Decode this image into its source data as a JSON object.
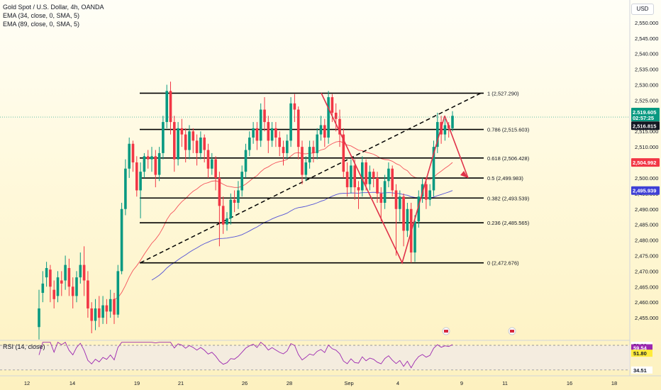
{
  "header": {
    "title": "Gold Spot / U.S. Dollar, 4h, OANDA",
    "ema1": "EMA (34, close, 0, SMA, 5)",
    "ema2": "EMA (89, close, 0, SMA, 5)",
    "currency": "USD"
  },
  "rsi_title": "RSI (14, close)",
  "colors": {
    "up": "#089981",
    "down": "#f23645",
    "ema34": "#f23645",
    "ema89": "#3f3fd6",
    "annotation": "#e0334a",
    "rsi": "#9c27b0",
    "lines": "#000000"
  },
  "chart_data": {
    "type": "candlestick",
    "instrument": "Gold Spot / U.S. Dollar",
    "timeframe": "4h",
    "ylim": [
      2450,
      2555
    ],
    "y_ticks": [
      2455,
      2460,
      2465,
      2470,
      2475,
      2480,
      2485,
      2490,
      2495,
      2500,
      2505,
      2510,
      2515,
      2520,
      2525,
      2530,
      2535,
      2540,
      2545,
      2550
    ],
    "x_ticks": [
      "12",
      "14",
      "19",
      "21",
      "26",
      "28",
      "Sep",
      "4",
      "9",
      "11",
      "16",
      "18"
    ],
    "candles": [
      [
        2452.0,
        2458.0,
        2448.0,
        2464.0
      ],
      [
        2463.0,
        2466.0,
        2460.0,
        2470.0
      ],
      [
        2468.0,
        2471.0,
        2465.0,
        2473.0
      ],
      [
        2470.5,
        2465.0,
        2460.0,
        2472.0
      ],
      [
        2464.0,
        2461.0,
        2458.0,
        2467.0
      ],
      [
        2462.0,
        2468.0,
        2460.0,
        2470.0
      ],
      [
        2467.0,
        2466.0,
        2462.0,
        2470.0
      ],
      [
        2467.0,
        2472.0,
        2464.0,
        2475.0
      ],
      [
        2471.0,
        2465.0,
        2462.0,
        2474.0
      ],
      [
        2465.0,
        2462.0,
        2458.0,
        2468.0
      ],
      [
        2462.0,
        2468.0,
        2460.0,
        2470.0
      ],
      [
        2468.0,
        2472.0,
        2466.0,
        2476.0
      ],
      [
        2472.0,
        2467.0,
        2462.0,
        2478.0
      ],
      [
        2467.0,
        2458.0,
        2455.0,
        2470.0
      ],
      [
        2458.0,
        2454.0,
        2450.0,
        2460.0
      ],
      [
        2454.0,
        2458.0,
        2451.0,
        2461.0
      ],
      [
        2458.0,
        2455.0,
        2452.0,
        2462.0
      ],
      [
        2455.0,
        2459.0,
        2453.0,
        2462.0
      ],
      [
        2459.0,
        2457.0,
        2453.0,
        2461.0
      ],
      [
        2457.0,
        2461.0,
        2455.0,
        2464.0
      ],
      [
        2461.0,
        2456.0,
        2453.0,
        2463.0
      ],
      [
        2456.0,
        2470.0,
        2455.0,
        2472.0
      ],
      [
        2470.0,
        2490.0,
        2469.0,
        2492.0
      ],
      [
        2490.0,
        2503.0,
        2488.0,
        2506.0
      ],
      [
        2503.0,
        2511.0,
        2500.0,
        2513.0
      ],
      [
        2511.0,
        2505.0,
        2502.0,
        2512.0
      ],
      [
        2505.0,
        2496.0,
        2494.0,
        2507.0
      ],
      [
        2496.0,
        2502.0,
        2487.0,
        2505.0
      ],
      [
        2502.0,
        2507.0,
        2500.0,
        2508.0
      ],
      [
        2507.0,
        2506.0,
        2503.0,
        2509.0
      ],
      [
        2506.0,
        2507.0,
        2502.0,
        2510.0
      ],
      [
        2507.0,
        2501.0,
        2497.0,
        2509.0
      ],
      [
        2501.0,
        2508.0,
        2499.0,
        2510.0
      ],
      [
        2508.0,
        2518.0,
        2506.0,
        2520.0
      ],
      [
        2518.0,
        2528.0,
        2516.0,
        2530.0
      ],
      [
        2528.0,
        2518.0,
        2514.0,
        2531.0
      ],
      [
        2518.0,
        2506.0,
        2502.0,
        2520.0
      ],
      [
        2506.0,
        2516.0,
        2504.0,
        2518.0
      ],
      [
        2516.0,
        2514.0,
        2510.0,
        2519.0
      ],
      [
        2514.0,
        2509.0,
        2505.0,
        2516.0
      ],
      [
        2509.0,
        2515.0,
        2506.0,
        2517.0
      ],
      [
        2515.0,
        2512.0,
        2508.0,
        2516.0
      ],
      [
        2512.0,
        2508.0,
        2504.0,
        2514.0
      ],
      [
        2508.0,
        2513.0,
        2506.0,
        2515.0
      ],
      [
        2513.0,
        2509.0,
        2505.0,
        2514.0
      ],
      [
        2509.0,
        2503.0,
        2500.0,
        2511.0
      ],
      [
        2503.0,
        2506.0,
        2501.0,
        2508.0
      ],
      [
        2506.0,
        2500.0,
        2496.0,
        2507.0
      ],
      [
        2500.0,
        2491.0,
        2478.0,
        2502.0
      ],
      [
        2491.0,
        2485.0,
        2482.0,
        2494.0
      ],
      [
        2485.0,
        2487.0,
        2483.0,
        2489.0
      ],
      [
        2487.0,
        2493.0,
        2485.0,
        2495.0
      ],
      [
        2493.0,
        2492.0,
        2489.0,
        2496.0
      ],
      [
        2492.0,
        2496.0,
        2490.0,
        2499.0
      ],
      [
        2496.0,
        2502.0,
        2494.0,
        2504.0
      ],
      [
        2502.0,
        2509.0,
        2500.0,
        2511.0
      ],
      [
        2509.0,
        2513.0,
        2507.0,
        2515.0
      ],
      [
        2513.0,
        2516.0,
        2511.0,
        2518.0
      ],
      [
        2516.0,
        2512.0,
        2509.0,
        2518.0
      ],
      [
        2512.0,
        2522.0,
        2510.0,
        2524.0
      ],
      [
        2522.0,
        2518.0,
        2515.0,
        2526.0
      ],
      [
        2518.0,
        2512.0,
        2508.0,
        2520.0
      ],
      [
        2512.0,
        2516.0,
        2510.0,
        2518.0
      ],
      [
        2516.0,
        2513.0,
        2510.0,
        2518.0
      ],
      [
        2513.0,
        2510.0,
        2507.0,
        2515.0
      ],
      [
        2510.0,
        2508.0,
        2504.0,
        2512.0
      ],
      [
        2508.0,
        2512.0,
        2506.0,
        2514.0
      ],
      [
        2512.0,
        2524.0,
        2510.0,
        2526.0
      ],
      [
        2524.0,
        2522.0,
        2518.0,
        2527.0
      ],
      [
        2522.0,
        2510.0,
        2506.0,
        2523.0
      ],
      [
        2510.0,
        2501.0,
        2498.0,
        2512.0
      ],
      [
        2501.0,
        2505.0,
        2499.0,
        2507.0
      ],
      [
        2505.0,
        2510.0,
        2503.0,
        2512.0
      ],
      [
        2510.0,
        2508.0,
        2505.0,
        2512.0
      ],
      [
        2508.0,
        2514.0,
        2506.0,
        2516.0
      ],
      [
        2514.0,
        2517.0,
        2512.0,
        2520.0
      ],
      [
        2517.0,
        2513.0,
        2510.0,
        2519.0
      ],
      [
        2513.0,
        2526.0,
        2511.0,
        2528.0
      ],
      [
        2526.0,
        2521.0,
        2518.0,
        2527.0
      ],
      [
        2521.0,
        2519.0,
        2515.0,
        2524.0
      ],
      [
        2519.0,
        2514.0,
        2510.0,
        2522.0
      ],
      [
        2514.0,
        2502.0,
        2500.0,
        2516.0
      ],
      [
        2502.0,
        2497.0,
        2494.0,
        2505.0
      ],
      [
        2497.0,
        2504.0,
        2495.0,
        2506.0
      ],
      [
        2504.0,
        2497.0,
        2493.0,
        2506.0
      ],
      [
        2497.0,
        2496.0,
        2490.0,
        2499.0
      ],
      [
        2496.0,
        2505.0,
        2494.0,
        2507.0
      ],
      [
        2505.0,
        2498.0,
        2496.0,
        2506.0
      ],
      [
        2498.0,
        2502.0,
        2496.0,
        2504.0
      ],
      [
        2502.0,
        2500.0,
        2497.0,
        2503.0
      ],
      [
        2500.0,
        2495.0,
        2492.0,
        2502.0
      ],
      [
        2495.0,
        2492.0,
        2486.0,
        2497.0
      ],
      [
        2492.0,
        2499.0,
        2490.0,
        2501.0
      ],
      [
        2499.0,
        2503.0,
        2497.0,
        2505.0
      ],
      [
        2503.0,
        2496.0,
        2494.0,
        2504.0
      ],
      [
        2496.0,
        2490.0,
        2475.0,
        2498.0
      ],
      [
        2490.0,
        2494.0,
        2486.0,
        2496.0
      ],
      [
        2494.0,
        2483.0,
        2478.0,
        2495.0
      ],
      [
        2483.0,
        2490.0,
        2481.0,
        2492.0
      ],
      [
        2490.0,
        2476.0,
        2472.7,
        2492.0
      ],
      [
        2476.0,
        2486.0,
        2473.0,
        2488.0
      ],
      [
        2486.0,
        2494.0,
        2484.0,
        2496.0
      ],
      [
        2494.0,
        2498.0,
        2492.0,
        2500.0
      ],
      [
        2498.0,
        2493.0,
        2490.0,
        2500.0
      ],
      [
        2493.0,
        2496.0,
        2491.0,
        2498.0
      ],
      [
        2496.0,
        2510.0,
        2494.0,
        2512.0
      ],
      [
        2510.0,
        2518.0,
        2508.0,
        2521.0
      ],
      [
        2518.0,
        2514.0,
        2511.0,
        2520.0
      ],
      [
        2514.0,
        2517.0,
        2512.0,
        2519.0
      ],
      [
        2517.0,
        2516.0,
        2513.0,
        2518.0
      ],
      [
        2516.0,
        2520.0,
        2515.0,
        2521.5
      ]
    ],
    "ema34_last": 2504.992,
    "ema89_last": 2495.939,
    "last_price": 2519.605,
    "countdown": "02:57:25",
    "prev_close": 2516.815,
    "fib_levels": [
      {
        "label": "1 (2,527.290)",
        "value": 2527.29
      },
      {
        "label": "0.786 (2,515.603)",
        "value": 2515.603
      },
      {
        "label": "0.618 (2,506.428)",
        "value": 2506.428
      },
      {
        "label": "0.5 (2,499.983)",
        "value": 2499.983
      },
      {
        "label": "0.382 (2,493.539)",
        "value": 2493.539
      },
      {
        "label": "0.236 (2,485.565)",
        "value": 2485.565
      },
      {
        "label": "0 (2,472.676)",
        "value": 2472.676
      }
    ],
    "rsi": {
      "ylim": [
        30,
        65
      ],
      "levels": [
        59.9,
        34.51
      ],
      "mid": 51.8,
      "last": 59.54,
      "tags": [
        "59.90",
        "59.54",
        "51.80",
        "34.51"
      ]
    }
  }
}
